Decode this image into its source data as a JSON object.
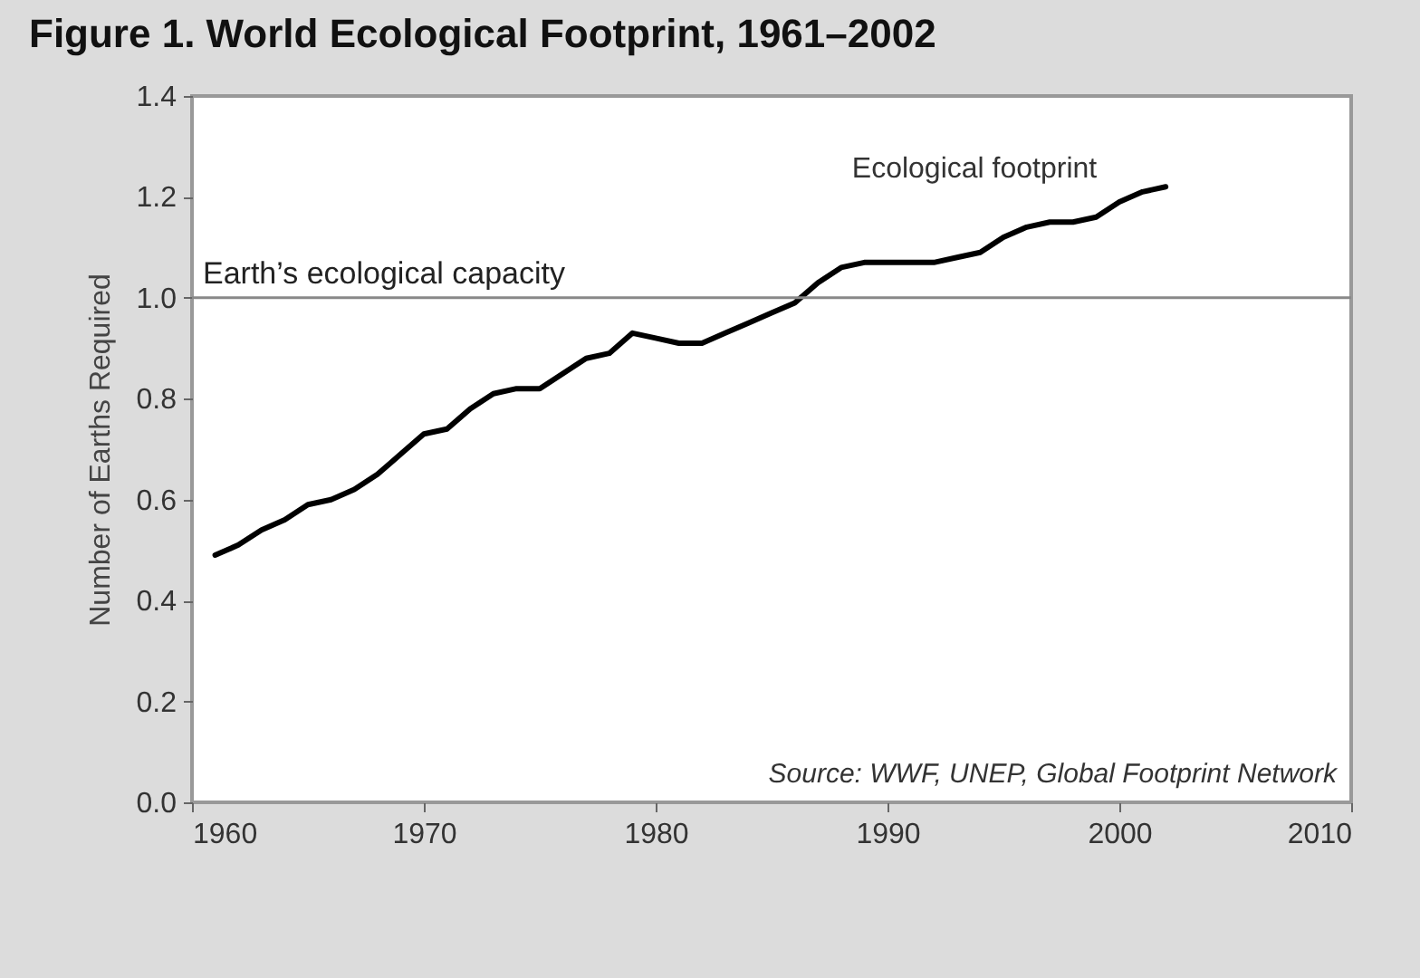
{
  "chart_data": {
    "type": "line",
    "title": "Figure 1. World Ecological Footprint, 1961–2002",
    "ylabel": "Number of Earths Required",
    "x": [
      1961,
      1962,
      1963,
      1964,
      1965,
      1966,
      1967,
      1968,
      1969,
      1970,
      1971,
      1972,
      1973,
      1974,
      1975,
      1976,
      1977,
      1978,
      1979,
      1980,
      1981,
      1982,
      1983,
      1984,
      1985,
      1986,
      1987,
      1988,
      1989,
      1990,
      1991,
      1992,
      1993,
      1994,
      1995,
      1996,
      1997,
      1998,
      1999,
      2000,
      2001,
      2002
    ],
    "series": [
      {
        "name": "Ecological footprint",
        "color": "#000000",
        "values": [
          0.49,
          0.51,
          0.54,
          0.56,
          0.59,
          0.6,
          0.62,
          0.65,
          0.69,
          0.73,
          0.74,
          0.78,
          0.81,
          0.82,
          0.82,
          0.85,
          0.88,
          0.89,
          0.93,
          0.92,
          0.91,
          0.91,
          0.93,
          0.95,
          0.97,
          0.99,
          1.03,
          1.06,
          1.07,
          1.07,
          1.07,
          1.07,
          1.08,
          1.09,
          1.12,
          1.14,
          1.15,
          1.15,
          1.16,
          1.19,
          1.21,
          1.22
        ]
      }
    ],
    "xlim": [
      1960,
      2010
    ],
    "xticks": [
      1960,
      1970,
      1980,
      1990,
      2000,
      2010
    ],
    "ylim": [
      0,
      1.4
    ],
    "yticks": [
      {
        "value": 0,
        "label": "0.0"
      },
      0.2,
      0.4,
      0.6,
      0.8,
      {
        "value": 1,
        "label": "1.0"
      },
      1.2,
      1.4
    ],
    "ref_lines": [
      {
        "axis": "y",
        "value": 1,
        "label": "Earth’s ecological capacity",
        "color": "#888888"
      }
    ],
    "annotations": [
      "Source: WWF, UNEP, Global Footprint Network"
    ],
    "grid": false,
    "marker": "none",
    "line_style": "solid",
    "legend": false
  }
}
